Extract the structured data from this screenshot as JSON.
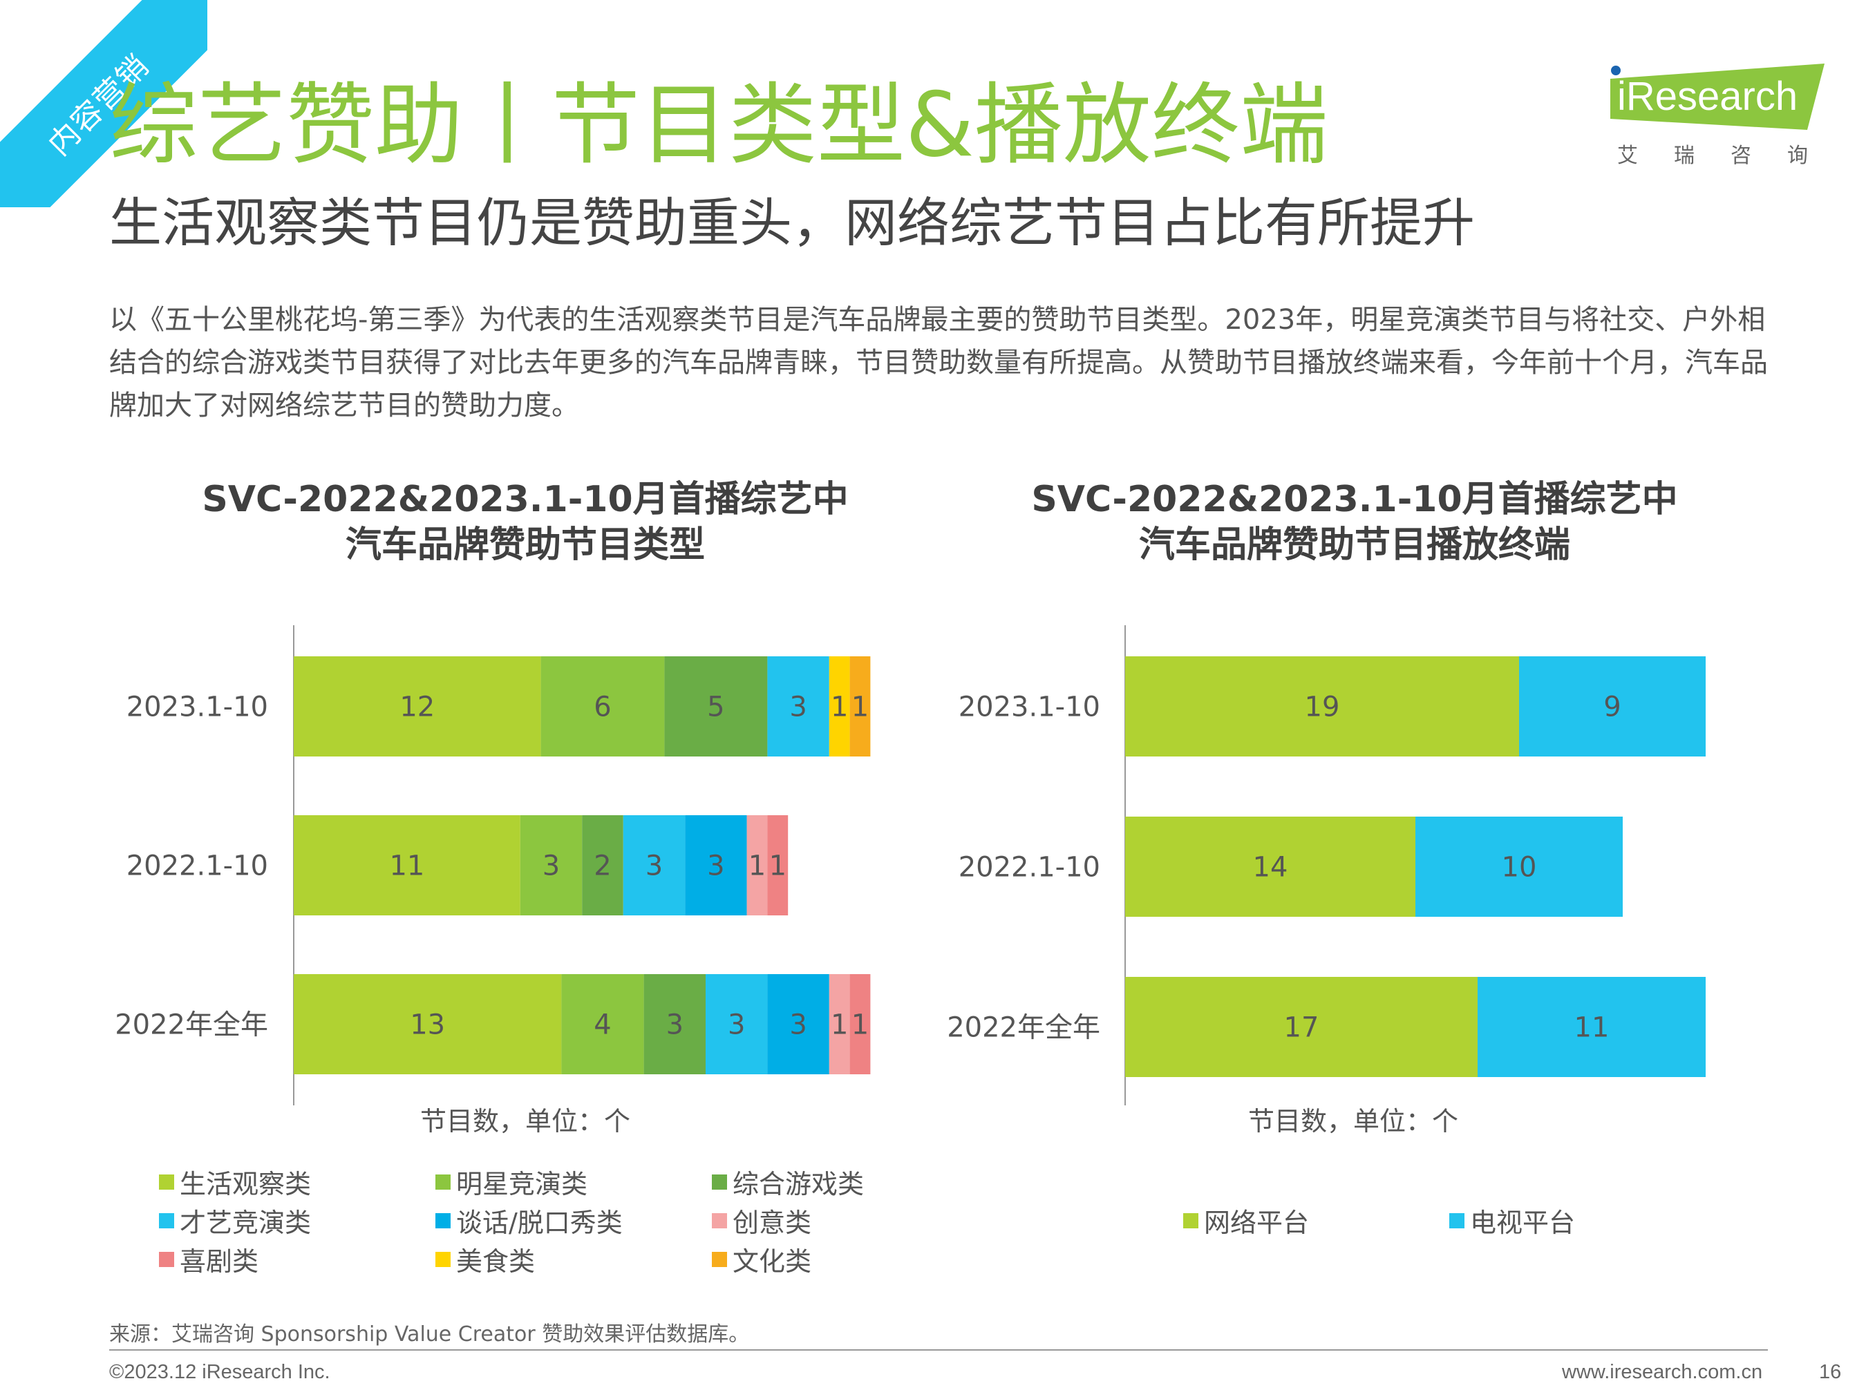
{
  "corner_tag": "内容营销",
  "header": {
    "title": "综艺赞助丨节目类型&播放终端",
    "subtitle": "生活观察类节目仍是赞助重头，网络综艺节目占比有所提升"
  },
  "logo": {
    "word": "iResearch",
    "cn": "艾瑞咨询",
    "icon": "iresearch-logo"
  },
  "intro": "以《五十公里桃花坞-第三季》为代表的生活观察类节目是汽车品牌最主要的赞助节目类型。2023年，明星竞演类节目与将社交、户外相结合的综合游戏类节目获得了对比去年更多的汽车品牌青睐，节目赞助数量有所提高。从赞助节目播放终端来看，今年前十个月，汽车品牌加大了对网络综艺节目的赞助力度。",
  "colors": {
    "lifestyle": "#b0d232",
    "star": "#8cc63f",
    "game": "#6aad46",
    "talent": "#22c3ee",
    "talk": "#00aee6",
    "creative": "#f4a4a4",
    "comedy": "#ef8283",
    "food": "#ffd400",
    "culture": "#f7ac1c",
    "network": "#b0d232",
    "tv": "#22c3ee",
    "brand": "#8cc63f"
  },
  "chart_data": [
    {
      "type": "bar",
      "orientation": "horizontal",
      "stacked": true,
      "title": "SVC-2022&2023.1-10月首播综艺中\n汽车品牌赞助节目类型",
      "title_lines": [
        "SVC-2022&2023.1-10月首播综艺中",
        "汽车品牌赞助节目类型"
      ],
      "xlabel": "节目数，单位：个",
      "categories": [
        "2023.1-10",
        "2022.1-10",
        "2022年全年"
      ],
      "series": [
        {
          "name": "生活观察类",
          "values": [
            12,
            11,
            13
          ],
          "color": "#b0d232"
        },
        {
          "name": "明星竞演类",
          "values": [
            6,
            3,
            4
          ],
          "color": "#8cc63f"
        },
        {
          "name": "综合游戏类",
          "values": [
            5,
            2,
            3
          ],
          "color": "#6aad46"
        },
        {
          "name": "才艺竞演类",
          "values": [
            3,
            3,
            3
          ],
          "color": "#22c3ee"
        },
        {
          "name": "谈话/脱口秀类",
          "values": [
            0,
            3,
            3
          ],
          "color": "#00aee6"
        },
        {
          "name": "创意类",
          "values": [
            0,
            1,
            1
          ],
          "color": "#f4a4a4"
        },
        {
          "name": "喜剧类",
          "values": [
            0,
            1,
            1
          ],
          "color": "#ef8283"
        },
        {
          "name": "美食类",
          "values": [
            1,
            0,
            0
          ],
          "color": "#ffd400"
        },
        {
          "name": "文化类",
          "values": [
            1,
            0,
            0
          ],
          "color": "#f7ac1c"
        }
      ],
      "xlim": [
        0,
        28
      ],
      "grid": false,
      "legend": "bottom"
    },
    {
      "type": "bar",
      "orientation": "horizontal",
      "stacked": true,
      "title": "SVC-2022&2023.1-10月首播综艺中\n汽车品牌赞助节目播放终端",
      "title_lines": [
        "SVC-2022&2023.1-10月首播综艺中",
        "汽车品牌赞助节目播放终端"
      ],
      "xlabel": "节目数，单位：个",
      "categories": [
        "2023.1-10",
        "2022.1-10",
        "2022年全年"
      ],
      "series": [
        {
          "name": "网络平台",
          "values": [
            19,
            14,
            17
          ],
          "color": "#b0d232"
        },
        {
          "name": "电视平台",
          "values": [
            9,
            10,
            11
          ],
          "color": "#22c3ee"
        }
      ],
      "xlim": [
        0,
        28
      ],
      "grid": false,
      "legend": "bottom"
    }
  ],
  "footer": {
    "source": "来源：艾瑞咨询 Sponsorship Value Creator 赞助效果评估数据库。",
    "copyright": "©2023.12 iResearch Inc.",
    "url": "www.iresearch.com.cn",
    "page": "16"
  }
}
